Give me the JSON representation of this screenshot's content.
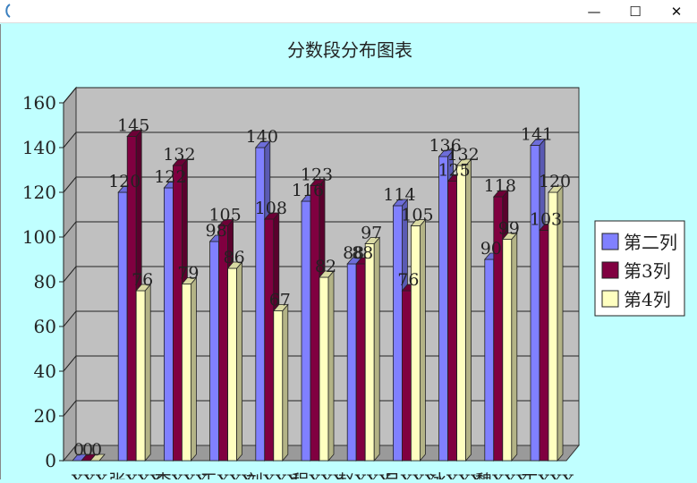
{
  "window": {
    "minimize_glyph": "—",
    "maximize_glyph": "☐",
    "close_glyph": "✕"
  },
  "chart_data": {
    "type": "bar",
    "title": "分数段分布图表",
    "xlabel": "",
    "ylabel": "",
    "ylim": [
      0,
      160
    ],
    "yticks": [
      0,
      20,
      40,
      60,
      80,
      100,
      120,
      140,
      160
    ],
    "grid": true,
    "legend_position": "right",
    "categories": [
      "XXX",
      "张XXX",
      "李XXX",
      "王XXX",
      "刘XXX",
      "程XXX",
      "赵XXX",
      "吕XXX",
      "冰XXX",
      "魏XXX",
      "丁XXX"
    ],
    "series": [
      {
        "name": "第二列",
        "color": "#8080ff",
        "values": [
          0,
          120,
          122,
          98,
          140,
          116,
          88,
          114,
          136,
          90,
          141
        ]
      },
      {
        "name": "第3列",
        "color": "#800040",
        "values": [
          0,
          145,
          132,
          105,
          108,
          123,
          88,
          76,
          125,
          118,
          103
        ]
      },
      {
        "name": "第4列",
        "color": "#ffffc0",
        "values": [
          0,
          76,
          79,
          86,
          67,
          82,
          97,
          105,
          132,
          99,
          120
        ]
      }
    ]
  }
}
